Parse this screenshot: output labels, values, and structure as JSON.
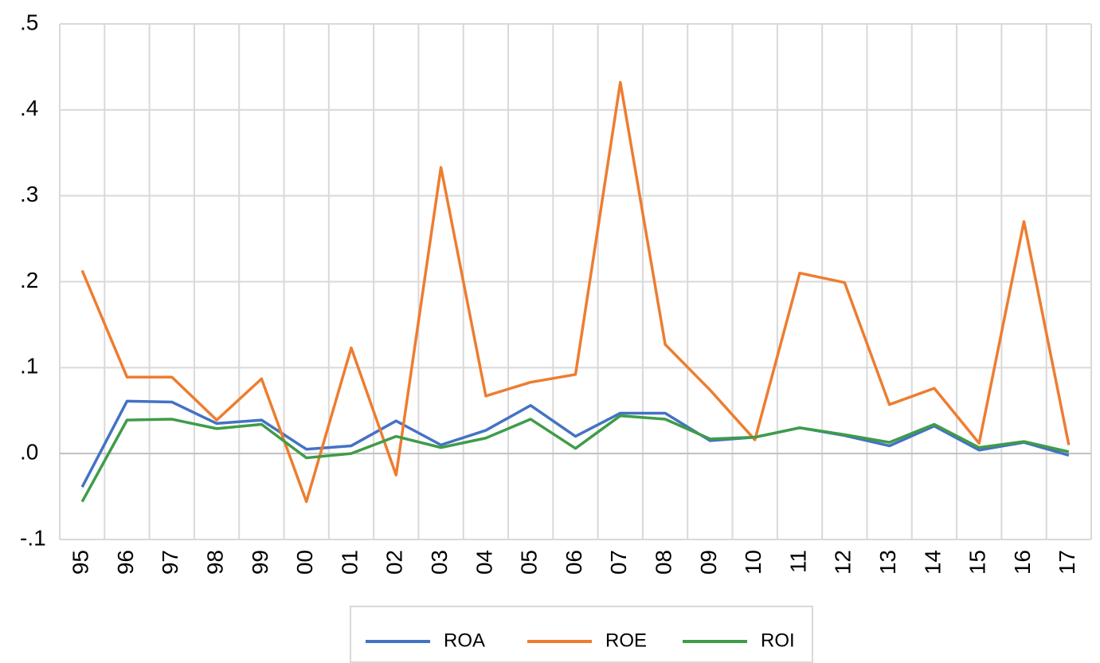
{
  "chart_data": {
    "type": "line",
    "categories": [
      "95",
      "96",
      "97",
      "98",
      "99",
      "00",
      "01",
      "02",
      "03",
      "04",
      "05",
      "06",
      "07",
      "08",
      "09",
      "10",
      "11",
      "12",
      "13",
      "14",
      "15",
      "16",
      "17"
    ],
    "series": [
      {
        "name": "ROA",
        "color": "#4472c4",
        "values": [
          -0.039,
          0.061,
          0.06,
          0.035,
          0.039,
          0.005,
          0.009,
          0.038,
          0.01,
          0.027,
          0.056,
          0.02,
          0.047,
          0.047,
          0.015,
          0.019,
          0.03,
          0.021,
          0.009,
          0.032,
          0.004,
          0.013,
          -0.002
        ]
      },
      {
        "name": "ROE",
        "color": "#ed7d31",
        "values": [
          0.213,
          0.089,
          0.089,
          0.039,
          0.087,
          -0.056,
          0.123,
          -0.025,
          0.333,
          0.067,
          0.083,
          0.092,
          0.432,
          0.127,
          0.074,
          0.016,
          0.21,
          0.199,
          0.057,
          0.076,
          0.012,
          0.27,
          0.01
        ]
      },
      {
        "name": "ROI",
        "color": "#3f9c48",
        "values": [
          -0.056,
          0.039,
          0.04,
          0.029,
          0.034,
          -0.005,
          0.0,
          0.02,
          0.007,
          0.018,
          0.04,
          0.006,
          0.044,
          0.04,
          0.017,
          0.019,
          0.03,
          0.022,
          0.013,
          0.034,
          0.007,
          0.014,
          0.002
        ]
      }
    ],
    "ylim": [
      -0.1,
      0.5
    ],
    "yticks": [
      {
        "value": -0.1,
        "label": "-.1"
      },
      {
        "value": 0.0,
        "label": ".0"
      },
      {
        "value": 0.1,
        "label": ".1"
      },
      {
        "value": 0.2,
        "label": ".2"
      },
      {
        "value": 0.3,
        "label": ".3"
      },
      {
        "value": 0.4,
        "label": ".4"
      },
      {
        "value": 0.5,
        "label": ".5"
      }
    ],
    "grid": true,
    "legend": "bottom"
  }
}
